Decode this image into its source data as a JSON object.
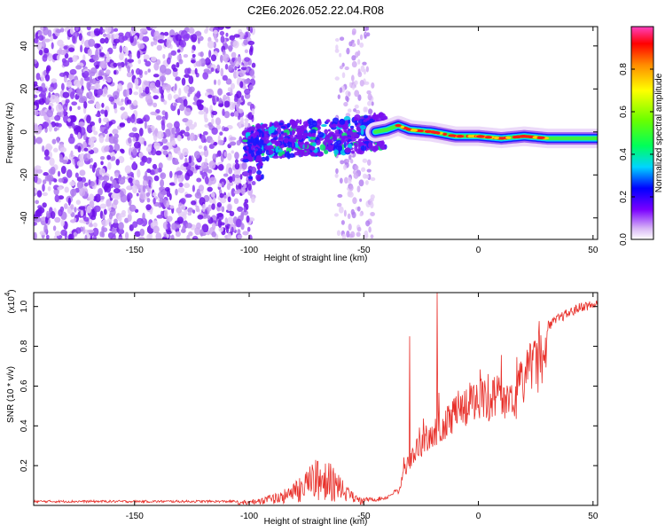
{
  "chart_data": [
    {
      "type": "heatmap",
      "title": "C2E6.2026.052.22.04.R08",
      "xlabel": "Height of straight line (km)",
      "ylabel": "Frequency (Hz)",
      "xlim": [
        -194,
        52
      ],
      "ylim": [
        -50,
        49
      ],
      "xticks": [
        -150,
        -100,
        -50,
        0,
        50
      ],
      "xtick_labels": [
        "-150",
        "-100",
        "-50",
        "0",
        "50"
      ],
      "yticks": [
        -40,
        -20,
        0,
        20,
        40
      ],
      "ytick_labels": [
        "-40",
        "-20",
        "0",
        "20",
        "40"
      ],
      "colorbar": {
        "label": "Normalized spectral amplitude",
        "range": [
          0,
          1
        ],
        "ticks": [
          0.0,
          0.2,
          0.4,
          0.6,
          0.8
        ],
        "tick_labels": [
          "0.0",
          "0.2",
          "0.4",
          "0.6",
          "0.8"
        ]
      },
      "ridge": {
        "description": "frequency trace",
        "x": [
          -100,
          -90,
          -80,
          -70,
          -60,
          -50,
          -40,
          -35,
          -30,
          -20,
          -10,
          0,
          10,
          20,
          30,
          40,
          52
        ],
        "y": [
          -6,
          -4,
          -3,
          -3,
          -2,
          -1,
          1,
          3,
          1,
          0,
          -2,
          -2,
          -3,
          -2,
          -3,
          -3,
          -3
        ]
      }
    },
    {
      "type": "line",
      "xlabel": "Height of straight line (km)",
      "ylabel": "SNR (10 * v/v)",
      "scale_label_base": "(x10",
      "scale_label_exp": "4",
      "xlim": [
        -194,
        52
      ],
      "ylim": [
        0,
        1.07
      ],
      "xticks": [
        -150,
        -100,
        -50,
        0,
        50
      ],
      "xtick_labels": [
        "-150",
        "-100",
        "-50",
        "0",
        "50"
      ],
      "yticks": [
        0.2,
        0.4,
        0.6,
        0.8,
        1.0
      ],
      "ytick_labels": [
        "0.2",
        "0.4",
        "0.6",
        "0.8",
        "1.0"
      ],
      "color": "#e8302a",
      "envelope": {
        "x": [
          -194,
          -120,
          -105,
          -95,
          -85,
          -80,
          -75,
          -72,
          -68,
          -65,
          -60,
          -55,
          -50,
          -45,
          -40,
          -35,
          -32,
          -28,
          -25,
          -22,
          -20,
          -18,
          -15,
          -10,
          -5,
          0,
          5,
          10,
          15,
          20,
          25,
          30,
          35,
          40,
          45,
          52
        ],
        "y": [
          0.02,
          0.02,
          0.02,
          0.04,
          0.08,
          0.12,
          0.17,
          0.23,
          0.25,
          0.22,
          0.14,
          0.07,
          0.03,
          0.03,
          0.04,
          0.08,
          0.22,
          0.32,
          0.36,
          0.42,
          0.45,
          0.44,
          0.47,
          0.57,
          0.62,
          0.63,
          0.63,
          0.68,
          0.6,
          0.8,
          0.86,
          0.9,
          0.94,
          0.97,
          1.0,
          1.01
        ]
      }
    }
  ]
}
